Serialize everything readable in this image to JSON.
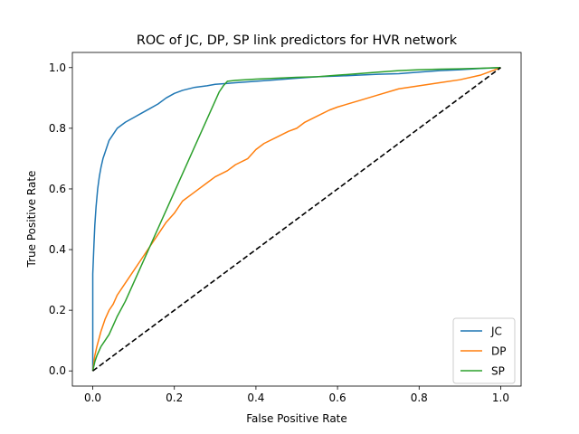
{
  "chart_data": {
    "type": "line",
    "title": "ROC of JC, DP, SP link predictors for HVR network",
    "xlabel": "False Positive Rate",
    "ylabel": "True Positive Rate",
    "xlim": [
      -0.05,
      1.05
    ],
    "ylim": [
      -0.05,
      1.05
    ],
    "xticks": [
      "0.0",
      "0.2",
      "0.4",
      "0.6",
      "0.8",
      "1.0"
    ],
    "yticks": [
      "0.0",
      "0.2",
      "0.4",
      "0.6",
      "0.8",
      "1.0"
    ],
    "legend_position": "lower right",
    "grid": false,
    "series": [
      {
        "name": "JC",
        "color": "#1f77b4",
        "x": [
          0,
          0,
          0.003,
          0.005,
          0.008,
          0.012,
          0.016,
          0.02,
          0.025,
          0.03,
          0.04,
          0.05,
          0.06,
          0.07,
          0.08,
          0.1,
          0.12,
          0.14,
          0.16,
          0.18,
          0.2,
          0.22,
          0.25,
          0.28,
          0.3,
          0.35,
          0.4,
          0.45,
          0.5,
          0.55,
          0.6,
          0.65,
          0.7,
          0.75,
          0.8,
          0.85,
          0.9,
          0.95,
          1.0
        ],
        "y": [
          0,
          0.32,
          0.42,
          0.48,
          0.54,
          0.6,
          0.64,
          0.67,
          0.7,
          0.72,
          0.76,
          0.78,
          0.8,
          0.81,
          0.82,
          0.835,
          0.85,
          0.865,
          0.88,
          0.9,
          0.915,
          0.925,
          0.935,
          0.94,
          0.945,
          0.95,
          0.955,
          0.96,
          0.965,
          0.97,
          0.972,
          0.975,
          0.978,
          0.98,
          0.985,
          0.99,
          0.993,
          0.997,
          1.0
        ]
      },
      {
        "name": "DP",
        "color": "#ff7f0e",
        "x": [
          0,
          0.005,
          0.01,
          0.02,
          0.03,
          0.04,
          0.05,
          0.06,
          0.08,
          0.1,
          0.12,
          0.14,
          0.16,
          0.18,
          0.2,
          0.22,
          0.25,
          0.28,
          0.3,
          0.33,
          0.35,
          0.38,
          0.4,
          0.42,
          0.45,
          0.48,
          0.5,
          0.52,
          0.55,
          0.58,
          0.6,
          0.65,
          0.7,
          0.75,
          0.8,
          0.85,
          0.9,
          0.95,
          1.0
        ],
        "y": [
          0,
          0.05,
          0.08,
          0.13,
          0.17,
          0.2,
          0.22,
          0.25,
          0.29,
          0.33,
          0.37,
          0.41,
          0.45,
          0.49,
          0.52,
          0.56,
          0.59,
          0.62,
          0.64,
          0.66,
          0.68,
          0.7,
          0.73,
          0.75,
          0.77,
          0.79,
          0.8,
          0.82,
          0.84,
          0.86,
          0.87,
          0.89,
          0.91,
          0.93,
          0.94,
          0.95,
          0.96,
          0.975,
          1.0
        ]
      },
      {
        "name": "SP",
        "color": "#2ca02c",
        "x": [
          0,
          0.005,
          0.01,
          0.02,
          0.03,
          0.04,
          0.05,
          0.06,
          0.08,
          0.1,
          0.12,
          0.14,
          0.16,
          0.18,
          0.2,
          0.22,
          0.24,
          0.26,
          0.28,
          0.3,
          0.31,
          0.32,
          0.33,
          0.35,
          0.4,
          0.45,
          0.5,
          0.55,
          0.6,
          0.65,
          0.7,
          0.75,
          0.8,
          0.85,
          0.9,
          0.95,
          1.0
        ],
        "y": [
          0,
          0.03,
          0.05,
          0.08,
          0.1,
          0.12,
          0.15,
          0.18,
          0.23,
          0.29,
          0.35,
          0.41,
          0.47,
          0.53,
          0.59,
          0.65,
          0.71,
          0.77,
          0.83,
          0.89,
          0.92,
          0.94,
          0.955,
          0.958,
          0.962,
          0.965,
          0.968,
          0.97,
          0.975,
          0.98,
          0.985,
          0.99,
          0.993,
          0.995,
          0.996,
          0.998,
          1.0
        ]
      },
      {
        "name": "",
        "color": "#000000",
        "dashed": true,
        "x": [
          0,
          1
        ],
        "y": [
          0,
          1
        ]
      }
    ]
  }
}
